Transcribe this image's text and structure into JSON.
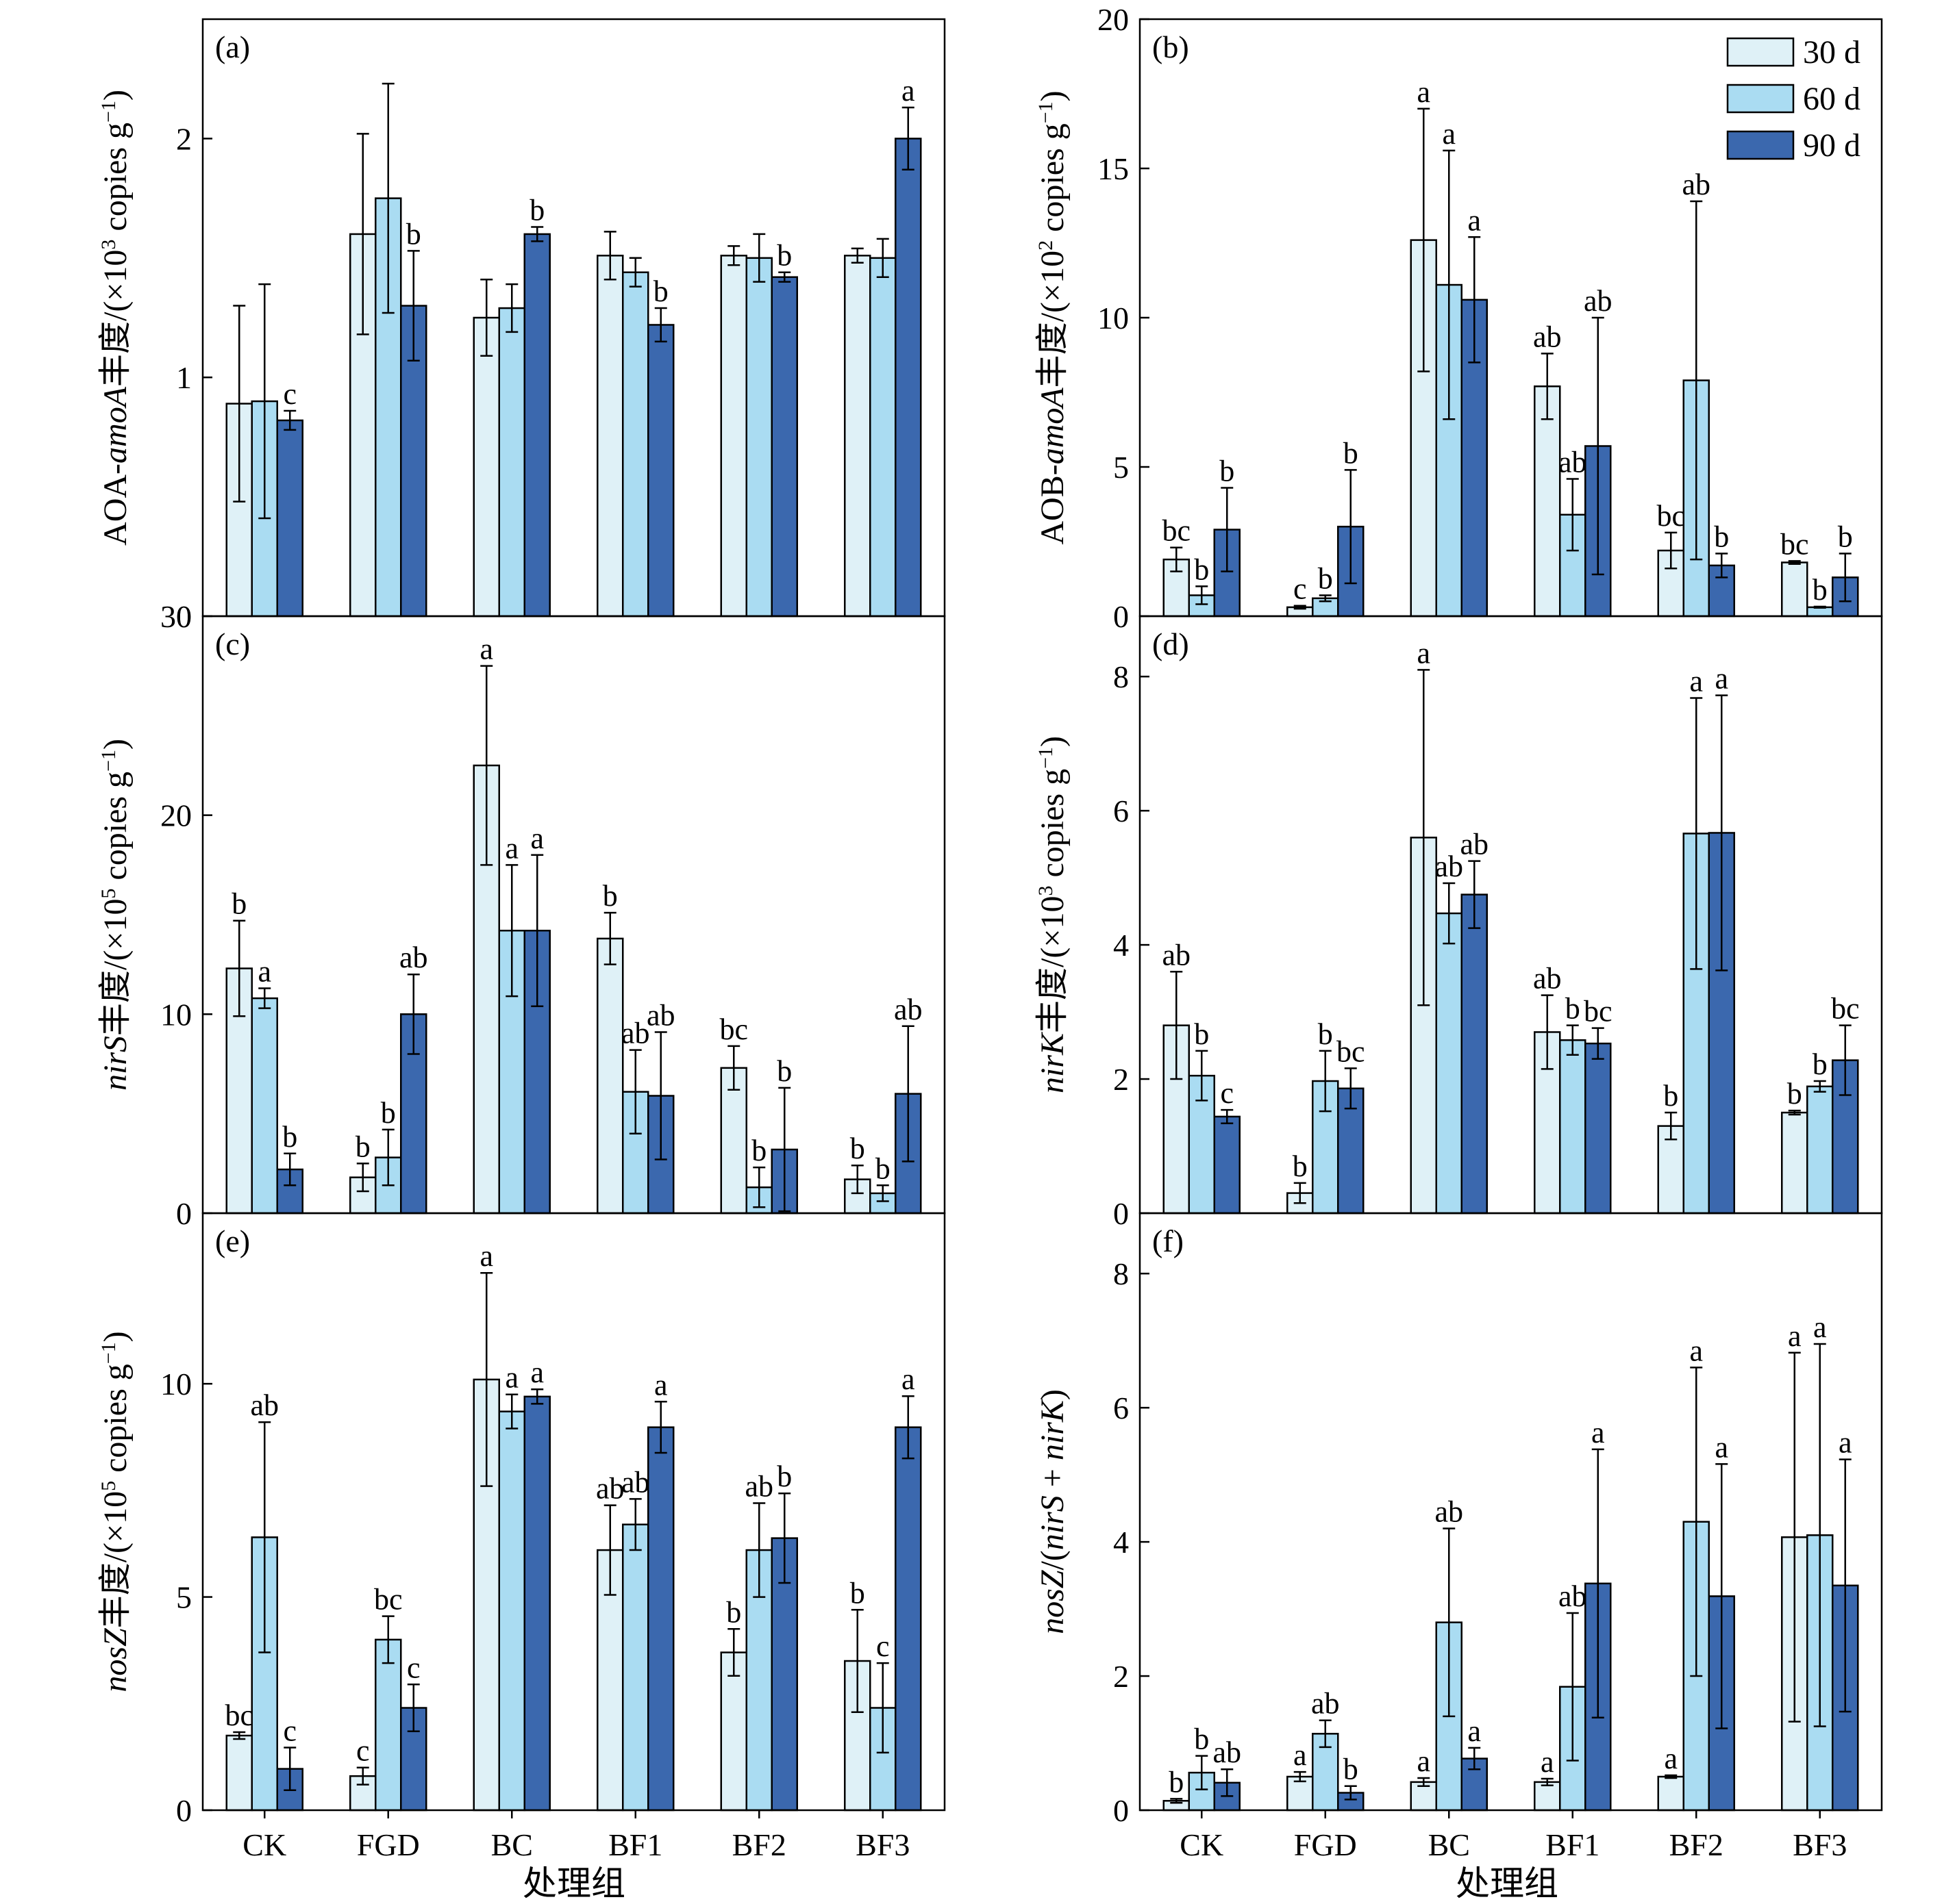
{
  "legend": {
    "series": [
      "30 d",
      "60 d",
      "90 d"
    ],
    "colors": [
      "#dff1f7",
      "#aadcf2",
      "#3b68ae"
    ],
    "placement": "top-right"
  },
  "xlabel": "处理组",
  "chart_data": [
    {
      "id": "a",
      "tag": "(a)",
      "type": "bar",
      "ylabel": "AOA-amoA丰度/(×10³ copies g⁻¹)",
      "ylabel_parts": [
        {
          "t": "AOA-"
        },
        {
          "t": "amoA",
          "i": 1
        },
        {
          "t": "丰度/(×10"
        },
        {
          "t": "3",
          "s": 1
        },
        {
          "t": " copies g"
        },
        {
          "t": "−1",
          "s": 1
        },
        {
          "t": ")"
        }
      ],
      "ylim": [
        0,
        2.5
      ],
      "yticks": [
        0,
        1,
        2
      ],
      "categories": [
        "CK",
        "FGD",
        "BC",
        "BF1",
        "BF2",
        "BF3"
      ],
      "series": [
        {
          "name": "30 d",
          "values": [
            0.89,
            1.6,
            1.25,
            1.51,
            1.51,
            1.51
          ],
          "err": [
            0.41,
            0.42,
            0.16,
            0.1,
            0.04,
            0.03
          ],
          "sig": [
            "",
            "",
            "",
            "",
            "",
            ""
          ]
        },
        {
          "name": "60 d",
          "values": [
            0.9,
            1.75,
            1.29,
            1.44,
            1.5,
            1.5
          ],
          "err": [
            0.49,
            0.48,
            0.1,
            0.06,
            0.1,
            0.08
          ],
          "sig": [
            "",
            "",
            "",
            "",
            "",
            ""
          ]
        },
        {
          "name": "90 d",
          "values": [
            0.82,
            1.3,
            1.6,
            1.22,
            1.42,
            2.0
          ],
          "err": [
            0.04,
            0.23,
            0.03,
            0.07,
            0.02,
            0.13
          ],
          "sig": [
            "c",
            "b",
            "b",
            "b",
            "b",
            "a"
          ]
        }
      ]
    },
    {
      "id": "b",
      "tag": "(b)",
      "type": "bar",
      "ylabel": "AOB-amoA丰度/(×10² copies g⁻¹)",
      "ylabel_parts": [
        {
          "t": "AOB-"
        },
        {
          "t": "amoA",
          "i": 1
        },
        {
          "t": "丰度/(×10"
        },
        {
          "t": "2",
          "s": 1
        },
        {
          "t": " copies g"
        },
        {
          "t": "−1",
          "s": 1
        },
        {
          "t": ")"
        }
      ],
      "ylim": [
        0,
        20
      ],
      "yticks": [
        0,
        5,
        10,
        15,
        20
      ],
      "categories": [
        "CK",
        "FGD",
        "BC",
        "BF1",
        "BF2",
        "BF3"
      ],
      "series": [
        {
          "name": "30 d",
          "values": [
            1.9,
            0.3,
            12.6,
            7.7,
            2.2,
            1.8
          ],
          "err": [
            0.4,
            0.05,
            4.4,
            1.1,
            0.6,
            0.05
          ],
          "sig": [
            "bc",
            "c",
            "a",
            "ab",
            "bc",
            "bc"
          ]
        },
        {
          "name": "60 d",
          "values": [
            0.7,
            0.6,
            11.1,
            3.4,
            7.9,
            0.3
          ],
          "err": [
            0.3,
            0.1,
            4.5,
            1.2,
            6.0,
            0.02
          ],
          "sig": [
            "b",
            "b",
            "a",
            "ab",
            "ab",
            "b"
          ]
        },
        {
          "name": "90 d",
          "values": [
            2.9,
            3.0,
            10.6,
            5.7,
            1.7,
            1.3
          ],
          "err": [
            1.4,
            1.9,
            2.1,
            4.3,
            0.4,
            0.8
          ],
          "sig": [
            "b",
            "b",
            "a",
            "ab",
            "b",
            "b"
          ]
        }
      ]
    },
    {
      "id": "c",
      "tag": "(c)",
      "type": "bar",
      "ylabel": "nirS丰度/(×10⁵ copies g⁻¹)",
      "ylabel_parts": [
        {
          "t": "nirS",
          "i": 1
        },
        {
          "t": "丰度/(×10"
        },
        {
          "t": "5",
          "s": 1
        },
        {
          "t": " copies g"
        },
        {
          "t": "−1",
          "s": 1
        },
        {
          "t": ")"
        }
      ],
      "ylim": [
        0,
        30
      ],
      "yticks": [
        0,
        10,
        20,
        30
      ],
      "categories": [
        "CK",
        "FGD",
        "BC",
        "BF1",
        "BF2",
        "BF3"
      ],
      "series": [
        {
          "name": "30 d",
          "values": [
            12.3,
            1.8,
            22.5,
            13.8,
            7.3,
            1.7
          ],
          "err": [
            2.4,
            0.7,
            5.0,
            1.3,
            1.1,
            0.7
          ],
          "sig": [
            "b",
            "b",
            "a",
            "b",
            "bc",
            "b"
          ]
        },
        {
          "name": "60 d",
          "values": [
            10.8,
            2.8,
            14.2,
            6.1,
            1.3,
            1.0
          ],
          "err": [
            0.5,
            1.4,
            3.3,
            2.1,
            1.0,
            0.4
          ],
          "sig": [
            "a",
            "b",
            "a",
            "ab",
            "b",
            "b"
          ]
        },
        {
          "name": "90 d",
          "values": [
            2.2,
            10.0,
            14.2,
            5.9,
            3.2,
            6.0
          ],
          "err": [
            0.8,
            2.0,
            3.8,
            3.2,
            3.1,
            3.4
          ],
          "sig": [
            "b",
            "ab",
            "a",
            "ab",
            "b",
            "ab"
          ]
        }
      ]
    },
    {
      "id": "d",
      "tag": "(d)",
      "type": "bar",
      "ylabel": "nirK丰度/(×10³ copies g⁻¹)",
      "ylabel_parts": [
        {
          "t": "nirK",
          "i": 1
        },
        {
          "t": "丰度/(×10"
        },
        {
          "t": "3",
          "s": 1
        },
        {
          "t": " copies g"
        },
        {
          "t": "−1",
          "s": 1
        },
        {
          "t": ")"
        }
      ],
      "ylim": [
        0,
        8.9
      ],
      "yticks": [
        0,
        2,
        4,
        6,
        8
      ],
      "categories": [
        "CK",
        "FGD",
        "BC",
        "BF1",
        "BF2",
        "BF3"
      ],
      "series": [
        {
          "name": "30 d",
          "values": [
            2.8,
            0.3,
            5.6,
            2.7,
            1.3,
            1.5
          ],
          "err": [
            0.8,
            0.15,
            2.5,
            0.55,
            0.2,
            0.03
          ],
          "sig": [
            "ab",
            "b",
            "a",
            "ab",
            "b",
            "b"
          ]
        },
        {
          "name": "60 d",
          "values": [
            2.05,
            1.97,
            4.47,
            2.58,
            5.66,
            1.89
          ],
          "err": [
            0.37,
            0.45,
            0.45,
            0.22,
            2.02,
            0.08
          ],
          "sig": [
            "b",
            "b",
            "ab",
            "b",
            "a",
            "b"
          ]
        },
        {
          "name": "90 d",
          "values": [
            1.44,
            1.86,
            4.75,
            2.53,
            5.67,
            2.28
          ],
          "err": [
            0.1,
            0.3,
            0.5,
            0.23,
            2.05,
            0.52
          ],
          "sig": [
            "c",
            "bc",
            "ab",
            "bc",
            "a",
            "bc"
          ]
        }
      ]
    },
    {
      "id": "e",
      "tag": "(e)",
      "type": "bar",
      "ylabel": "nosZ丰度/(×10⁵ copies g⁻¹)",
      "ylabel_parts": [
        {
          "t": "nosZ",
          "i": 1
        },
        {
          "t": "丰度/(×10"
        },
        {
          "t": "5",
          "s": 1
        },
        {
          "t": " copies g"
        },
        {
          "t": "−1",
          "s": 1
        },
        {
          "t": ")"
        }
      ],
      "ylim": [
        0,
        14
      ],
      "yticks": [
        0,
        5,
        10
      ],
      "categories": [
        "CK",
        "FGD",
        "BC",
        "BF1",
        "BF2",
        "BF3"
      ],
      "series": [
        {
          "name": "30 d",
          "values": [
            1.75,
            0.8,
            10.1,
            6.1,
            3.7,
            3.5
          ],
          "err": [
            0.08,
            0.2,
            2.5,
            1.05,
            0.55,
            1.2
          ],
          "sig": [
            "bc",
            "c",
            "a",
            "ab",
            "b",
            "b"
          ]
        },
        {
          "name": "60 d",
          "values": [
            6.4,
            4.0,
            9.35,
            6.7,
            6.1,
            2.4
          ],
          "err": [
            2.7,
            0.55,
            0.4,
            0.6,
            1.1,
            1.05
          ],
          "sig": [
            "ab",
            "bc",
            "a",
            "ab",
            "ab",
            "c"
          ]
        },
        {
          "name": "90 d",
          "values": [
            0.97,
            2.4,
            9.7,
            8.98,
            6.38,
            8.98
          ],
          "err": [
            0.5,
            0.55,
            0.17,
            0.6,
            1.05,
            0.73
          ],
          "sig": [
            "c",
            "c",
            "a",
            "a",
            "b",
            "a"
          ]
        }
      ]
    },
    {
      "id": "f",
      "tag": "(f)",
      "type": "bar",
      "ylabel": "nosZ/(nirS + nirK)",
      "ylabel_parts": [
        {
          "t": "nosZ",
          "i": 1
        },
        {
          "t": "/("
        },
        {
          "t": "nirS",
          "i": 1
        },
        {
          "t": " + "
        },
        {
          "t": "nirK",
          "i": 1
        },
        {
          "t": ")"
        }
      ],
      "ylim": [
        0,
        8.9
      ],
      "yticks": [
        0,
        2,
        4,
        6,
        8
      ],
      "categories": [
        "CK",
        "FGD",
        "BC",
        "BF1",
        "BF2",
        "BF3"
      ],
      "series": [
        {
          "name": "30 d",
          "values": [
            0.14,
            0.5,
            0.42,
            0.42,
            0.5,
            4.07
          ],
          "err": [
            0.03,
            0.07,
            0.06,
            0.05,
            0.02,
            2.75
          ],
          "sig": [
            "b",
            "a",
            "a",
            "a",
            "a",
            "a"
          ]
        },
        {
          "name": "60 d",
          "values": [
            0.56,
            1.14,
            2.8,
            1.84,
            4.3,
            4.1
          ],
          "err": [
            0.25,
            0.2,
            1.4,
            1.1,
            2.3,
            2.85
          ],
          "sig": [
            "b",
            "ab",
            "ab",
            "ab",
            "a",
            "a"
          ]
        },
        {
          "name": "90 d",
          "values": [
            0.41,
            0.26,
            0.77,
            3.38,
            3.19,
            3.35
          ],
          "err": [
            0.2,
            0.1,
            0.16,
            2.0,
            1.97,
            1.88
          ],
          "sig": [
            "ab",
            "b",
            "a",
            "a",
            "a",
            "a"
          ]
        }
      ]
    }
  ]
}
